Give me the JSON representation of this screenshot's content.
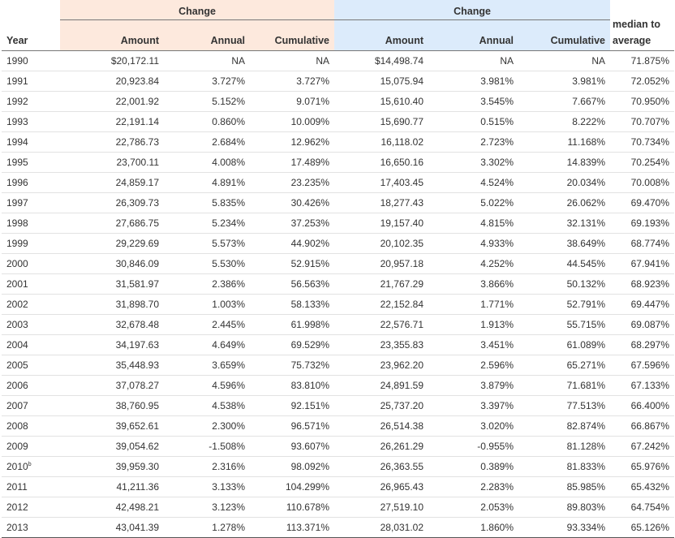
{
  "header": {
    "group1_label": "Change",
    "group2_label": "Change",
    "last_group_label": "median to",
    "columns": {
      "year": "Year",
      "amount1": "Amount",
      "annual1": "Annual",
      "cumulative1": "Cumulative",
      "amount2": "Amount",
      "annual2": "Annual",
      "cumulative2": "Cumulative",
      "average": "average"
    }
  },
  "colors": {
    "group1_bg": "#fde9dd",
    "group2_bg": "#dcebfb"
  },
  "rows": [
    {
      "year": "1990",
      "amount1": "$20,172.11",
      "annual1": "NA",
      "cum1": "NA",
      "amount2": "$14,498.74",
      "annual2": "NA",
      "cum2": "NA",
      "ratio": "71.875%"
    },
    {
      "year": "1991",
      "amount1": "20,923.84",
      "annual1": "3.727%",
      "cum1": "3.727%",
      "amount2": "15,075.94",
      "annual2": "3.981%",
      "cum2": "3.981%",
      "ratio": "72.052%"
    },
    {
      "year": "1992",
      "amount1": "22,001.92",
      "annual1": "5.152%",
      "cum1": "9.071%",
      "amount2": "15,610.40",
      "annual2": "3.545%",
      "cum2": "7.667%",
      "ratio": "70.950%"
    },
    {
      "year": "1993",
      "amount1": "22,191.14",
      "annual1": "0.860%",
      "cum1": "10.009%",
      "amount2": "15,690.77",
      "annual2": "0.515%",
      "cum2": "8.222%",
      "ratio": "70.707%"
    },
    {
      "year": "1994",
      "amount1": "22,786.73",
      "annual1": "2.684%",
      "cum1": "12.962%",
      "amount2": "16,118.02",
      "annual2": "2.723%",
      "cum2": "11.168%",
      "ratio": "70.734%"
    },
    {
      "year": "1995",
      "amount1": "23,700.11",
      "annual1": "4.008%",
      "cum1": "17.489%",
      "amount2": "16,650.16",
      "annual2": "3.302%",
      "cum2": "14.839%",
      "ratio": "70.254%"
    },
    {
      "year": "1996",
      "amount1": "24,859.17",
      "annual1": "4.891%",
      "cum1": "23.235%",
      "amount2": "17,403.45",
      "annual2": "4.524%",
      "cum2": "20.034%",
      "ratio": "70.008%"
    },
    {
      "year": "1997",
      "amount1": "26,309.73",
      "annual1": "5.835%",
      "cum1": "30.426%",
      "amount2": "18,277.43",
      "annual2": "5.022%",
      "cum2": "26.062%",
      "ratio": "69.470%"
    },
    {
      "year": "1998",
      "amount1": "27,686.75",
      "annual1": "5.234%",
      "cum1": "37.253%",
      "amount2": "19,157.40",
      "annual2": "4.815%",
      "cum2": "32.131%",
      "ratio": "69.193%"
    },
    {
      "year": "1999",
      "amount1": "29,229.69",
      "annual1": "5.573%",
      "cum1": "44.902%",
      "amount2": "20,102.35",
      "annual2": "4.933%",
      "cum2": "38.649%",
      "ratio": "68.774%"
    },
    {
      "year": "2000",
      "amount1": "30,846.09",
      "annual1": "5.530%",
      "cum1": "52.915%",
      "amount2": "20,957.18",
      "annual2": "4.252%",
      "cum2": "44.545%",
      "ratio": "67.941%"
    },
    {
      "year": "2001",
      "amount1": "31,581.97",
      "annual1": "2.386%",
      "cum1": "56.563%",
      "amount2": "21,767.29",
      "annual2": "3.866%",
      "cum2": "50.132%",
      "ratio": "68.923%"
    },
    {
      "year": "2002",
      "amount1": "31,898.70",
      "annual1": "1.003%",
      "cum1": "58.133%",
      "amount2": "22,152.84",
      "annual2": "1.771%",
      "cum2": "52.791%",
      "ratio": "69.447%"
    },
    {
      "year": "2003",
      "amount1": "32,678.48",
      "annual1": "2.445%",
      "cum1": "61.998%",
      "amount2": "22,576.71",
      "annual2": "1.913%",
      "cum2": "55.715%",
      "ratio": "69.087%"
    },
    {
      "year": "2004",
      "amount1": "34,197.63",
      "annual1": "4.649%",
      "cum1": "69.529%",
      "amount2": "23,355.83",
      "annual2": "3.451%",
      "cum2": "61.089%",
      "ratio": "68.297%"
    },
    {
      "year": "2005",
      "amount1": "35,448.93",
      "annual1": "3.659%",
      "cum1": "75.732%",
      "amount2": "23,962.20",
      "annual2": "2.596%",
      "cum2": "65.271%",
      "ratio": "67.596%"
    },
    {
      "year": "2006",
      "amount1": "37,078.27",
      "annual1": "4.596%",
      "cum1": "83.810%",
      "amount2": "24,891.59",
      "annual2": "3.879%",
      "cum2": "71.681%",
      "ratio": "67.133%"
    },
    {
      "year": "2007",
      "amount1": "38,760.95",
      "annual1": "4.538%",
      "cum1": "92.151%",
      "amount2": "25,737.20",
      "annual2": "3.397%",
      "cum2": "77.513%",
      "ratio": "66.400%"
    },
    {
      "year": "2008",
      "amount1": "39,652.61",
      "annual1": "2.300%",
      "cum1": "96.571%",
      "amount2": "26,514.38",
      "annual2": "3.020%",
      "cum2": "82.874%",
      "ratio": "66.867%"
    },
    {
      "year": "2009",
      "amount1": "39,054.62",
      "annual1": "-1.508%",
      "cum1": "93.607%",
      "amount2": "26,261.29",
      "annual2": "-0.955%",
      "cum2": "81.128%",
      "ratio": "67.242%"
    },
    {
      "year": "2010",
      "year_sup": "b",
      "amount1": "39,959.30",
      "annual1": "2.316%",
      "cum1": "98.092%",
      "amount2": "26,363.55",
      "annual2": "0.389%",
      "cum2": "81.833%",
      "ratio": "65.976%"
    },
    {
      "year": "2011",
      "amount1": "41,211.36",
      "annual1": "3.133%",
      "cum1": "104.299%",
      "amount2": "26,965.43",
      "annual2": "2.283%",
      "cum2": "85.985%",
      "ratio": "65.432%"
    },
    {
      "year": "2012",
      "amount1": "42,498.21",
      "annual1": "3.123%",
      "cum1": "110.678%",
      "amount2": "27,519.10",
      "annual2": "2.053%",
      "cum2": "89.803%",
      "ratio": "64.754%"
    },
    {
      "year": "2013",
      "amount1": "43,041.39",
      "annual1": "1.278%",
      "cum1": "113.371%",
      "amount2": "28,031.02",
      "annual2": "1.860%",
      "cum2": "93.334%",
      "ratio": "65.126%"
    }
  ]
}
